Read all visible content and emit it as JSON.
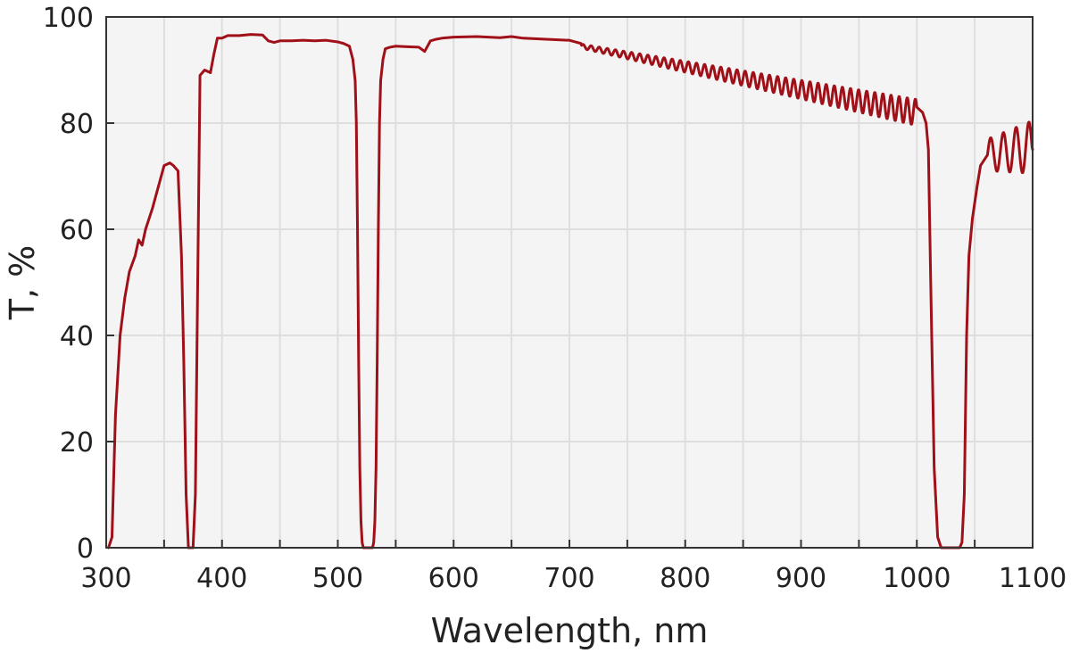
{
  "chart_data": {
    "type": "line",
    "title": "",
    "xlabel": "Wavelength, nm",
    "ylabel": "T, %",
    "xlim": [
      300,
      1100
    ],
    "ylim": [
      0,
      100
    ],
    "x_ticks": [
      300,
      400,
      500,
      600,
      700,
      800,
      900,
      1000,
      1100
    ],
    "y_ticks": [
      0,
      20,
      40,
      60,
      80,
      100
    ],
    "grid": true,
    "colors": {
      "line": "#a01018",
      "plot_background": "#f4f4f4",
      "grid": "#dedede",
      "frame": "#333333"
    },
    "series": [
      {
        "x": [
          302,
          305,
          308,
          312,
          316,
          320,
          325,
          328,
          331,
          334,
          340,
          345,
          350,
          355,
          358,
          362,
          365,
          367,
          369,
          371,
          373,
          375,
          377,
          379,
          381,
          383,
          385,
          390,
          393,
          396,
          400,
          405,
          415,
          425,
          435,
          440,
          445,
          450,
          460,
          470,
          480,
          490,
          500,
          505,
          510,
          513,
          515,
          516,
          517,
          518,
          519,
          520,
          521,
          522,
          523,
          524,
          525,
          527,
          529,
          530,
          531,
          532,
          533,
          534,
          535,
          536,
          537,
          539,
          541,
          545,
          550,
          560,
          570,
          575,
          580,
          585,
          590,
          600,
          620,
          640,
          650,
          660,
          680,
          700,
          705,
          710,
          1000,
          1005,
          1008,
          1010,
          1012,
          1015,
          1018,
          1021,
          1025,
          1030,
          1035,
          1037,
          1039,
          1041,
          1043,
          1045,
          1048,
          1052,
          1055,
          1058,
          1061,
          1100
        ],
        "y": [
          0,
          2,
          25,
          40,
          47,
          52,
          55,
          58,
          57,
          60,
          64,
          68,
          72,
          72.5,
          72,
          71,
          55,
          35,
          10,
          0,
          0,
          0,
          10,
          50,
          89,
          89.5,
          90,
          89.5,
          93,
          96,
          96,
          96.5,
          96.5,
          96.7,
          96.6,
          95.5,
          95.2,
          95.5,
          95.5,
          95.6,
          95.5,
          95.6,
          95.3,
          95,
          94.5,
          92,
          88,
          80,
          60,
          35,
          15,
          5,
          1,
          0,
          0,
          0,
          0,
          0,
          0,
          0,
          1,
          5,
          15,
          35,
          60,
          80,
          88,
          92,
          94,
          94.3,
          94.5,
          94.4,
          94.3,
          93.5,
          95.5,
          95.8,
          96,
          96.2,
          96.3,
          96.1,
          96.3,
          96,
          95.8,
          95.6,
          95.3,
          95,
          83,
          82,
          80,
          75,
          50,
          15,
          2,
          0,
          0,
          0,
          0,
          0,
          1,
          10,
          40,
          55,
          62,
          68,
          72,
          73,
          74,
          75
        ]
      }
    ],
    "fringes": [
      {
        "range": [
          710,
          1000
        ],
        "center_start": 94.5,
        "center_end": 82,
        "amp_start": 0.4,
        "amp_end": 2.5,
        "period": 7
      },
      {
        "range": [
          1061,
          1100
        ],
        "center_start": 74,
        "center_end": 75.5,
        "amp_start": 3,
        "amp_end": 5,
        "period": 11
      }
    ]
  }
}
